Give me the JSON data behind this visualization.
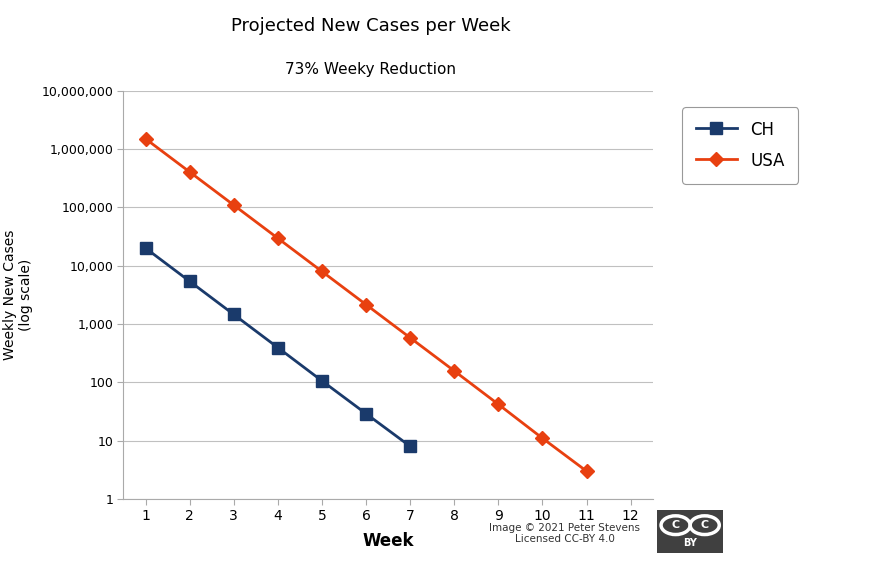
{
  "title": "Projected New Cases per Week",
  "subtitle": "73% Weeky Reduction",
  "xlabel": "Week",
  "ylabel_line1": "Weekly New Cases",
  "ylabel_line2": "(log scale)",
  "ch_weeks": [
    1,
    2,
    3,
    4,
    5,
    6,
    7
  ],
  "ch_values": [
    20000,
    5400,
    1458,
    394,
    106,
    29,
    8
  ],
  "usa_weeks": [
    1,
    2,
    3,
    4,
    5,
    6,
    7,
    8,
    9,
    10,
    11
  ],
  "usa_values": [
    1500000,
    405000,
    109350,
    29525,
    7972,
    2152,
    581,
    157,
    42,
    11,
    3
  ],
  "ch_color": "#1a3a6b",
  "usa_color": "#e84010",
  "ch_label": "CH",
  "usa_label": "USA",
  "ylim_bottom": 1,
  "ylim_top": 10000000,
  "xlim_left": 0.5,
  "xlim_right": 12.5,
  "xticks": [
    1,
    2,
    3,
    4,
    5,
    6,
    7,
    8,
    9,
    10,
    11,
    12
  ],
  "yticks": [
    1,
    10,
    100,
    1000,
    10000,
    100000,
    1000000,
    10000000
  ],
  "ytick_labels": [
    "1",
    "10",
    "100",
    "1,000",
    "10,000",
    "100,000",
    "1,000,000",
    "10,000,000"
  ],
  "background_color": "#ffffff",
  "grid_color": "#c0c0c0",
  "footnote": "Image © 2021 Peter Stevens\nLicensed CC-BY 4.0"
}
